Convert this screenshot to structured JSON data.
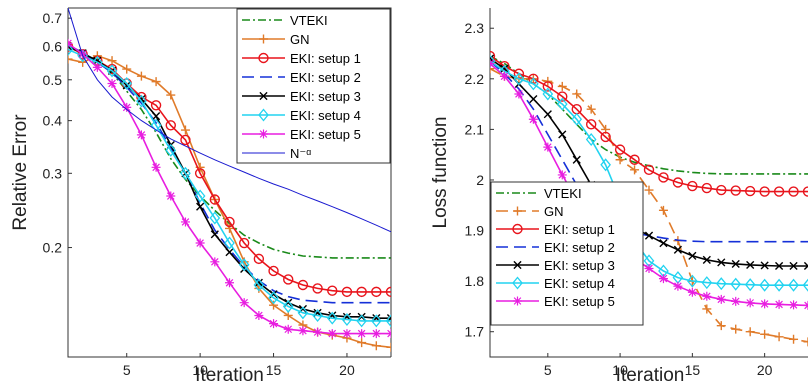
{
  "chart_data": [
    {
      "type": "line",
      "xlabel": "Iteration",
      "ylabel": "Relative Error",
      "xlim": [
        1,
        23
      ],
      "ylim": [
        0.11,
        0.74
      ],
      "yscale": "log",
      "xticks": [
        5,
        10,
        15,
        20
      ],
      "yticks": [
        0.2,
        0.3,
        0.4,
        0.5,
        0.6,
        0.7
      ],
      "legend_position": "top-right",
      "grid": false,
      "x": [
        1,
        2,
        3,
        4,
        5,
        6,
        7,
        8,
        9,
        10,
        11,
        12,
        13,
        14,
        15,
        16,
        17,
        18,
        19,
        20,
        21,
        22,
        23
      ],
      "series": [
        {
          "name": "VTEKI",
          "color": "#1a8a1a",
          "dash": "8,3,2,3",
          "marker": "none",
          "values": [
            0.6,
            0.575,
            0.55,
            0.52,
            0.47,
            0.425,
            0.375,
            0.325,
            0.29,
            0.265,
            0.245,
            0.228,
            0.214,
            0.205,
            0.198,
            0.194,
            0.191,
            0.19,
            0.189,
            0.189,
            0.189,
            0.189,
            0.189
          ]
        },
        {
          "name": "GN",
          "color": "#e07b2a",
          "dash": "",
          "marker": "plus",
          "values": [
            0.56,
            0.55,
            0.57,
            0.555,
            0.53,
            0.51,
            0.495,
            0.46,
            0.38,
            0.31,
            0.26,
            0.222,
            0.185,
            0.16,
            0.146,
            0.138,
            0.131,
            0.126,
            0.124,
            0.122,
            0.119,
            0.117,
            0.116
          ]
        },
        {
          "name": "EKI: setup 1",
          "color": "#e8141c",
          "dash": "",
          "marker": "circle",
          "values": [
            0.6,
            0.575,
            0.555,
            0.53,
            0.49,
            0.455,
            0.435,
            0.39,
            0.36,
            0.3,
            0.26,
            0.23,
            0.205,
            0.188,
            0.176,
            0.168,
            0.163,
            0.16,
            0.158,
            0.157,
            0.157,
            0.157,
            0.157
          ]
        },
        {
          "name": "EKI: setup 2",
          "color": "#1530d8",
          "dash": "12,6",
          "marker": "none",
          "values": [
            0.605,
            0.58,
            0.55,
            0.52,
            0.48,
            0.44,
            0.395,
            0.345,
            0.3,
            0.255,
            0.22,
            0.198,
            0.18,
            0.167,
            0.158,
            0.153,
            0.15,
            0.149,
            0.148,
            0.148,
            0.148,
            0.148,
            0.148
          ]
        },
        {
          "name": "EKI: setup 3",
          "color": "#000000",
          "dash": "",
          "marker": "x",
          "values": [
            0.6,
            0.578,
            0.555,
            0.525,
            0.485,
            0.45,
            0.41,
            0.35,
            0.3,
            0.25,
            0.215,
            0.195,
            0.178,
            0.165,
            0.155,
            0.148,
            0.143,
            0.14,
            0.138,
            0.137,
            0.137,
            0.136,
            0.136
          ]
        },
        {
          "name": "EKI: setup 4",
          "color": "#22d3f0",
          "dash": "",
          "marker": "diamond",
          "values": [
            0.59,
            0.57,
            0.55,
            0.525,
            0.49,
            0.445,
            0.39,
            0.34,
            0.3,
            0.265,
            0.235,
            0.205,
            0.182,
            0.163,
            0.152,
            0.145,
            0.14,
            0.138,
            0.136,
            0.135,
            0.134,
            0.134,
            0.134
          ]
        },
        {
          "name": "EKI: setup 5",
          "color": "#e81ee0",
          "dash": "",
          "marker": "asterisk",
          "values": [
            0.61,
            0.575,
            0.535,
            0.49,
            0.43,
            0.37,
            0.31,
            0.265,
            0.23,
            0.205,
            0.185,
            0.165,
            0.148,
            0.138,
            0.132,
            0.128,
            0.127,
            0.126,
            0.125,
            0.125,
            0.125,
            0.125,
            0.125
          ]
        },
        {
          "name": "N⁻ᵅ",
          "color": "#1a1ad0",
          "dash": "",
          "marker": "none",
          "width": 1,
          "values": [
            0.74,
            0.57,
            0.5,
            0.455,
            0.425,
            0.4,
            0.38,
            0.362,
            0.348,
            0.335,
            0.323,
            0.312,
            0.302,
            0.292,
            0.283,
            0.275,
            0.266,
            0.258,
            0.25,
            0.242,
            0.234,
            0.226,
            0.218
          ]
        }
      ]
    },
    {
      "type": "line",
      "xlabel": "Iteration",
      "ylabel": "Loss function",
      "xlim": [
        1,
        23
      ],
      "ylim": [
        1.65,
        2.34
      ],
      "yscale": "linear",
      "xticks": [
        5,
        10,
        15,
        20
      ],
      "yticks": [
        1.7,
        1.8,
        1.9,
        2.0,
        2.1,
        2.2,
        2.3
      ],
      "ytick_labels": [
        "1.7",
        "1.8",
        "1.9",
        "2",
        "2.1",
        "2.2",
        "2.3"
      ],
      "legend_position": "bottom-left",
      "grid": false,
      "x": [
        1,
        2,
        3,
        4,
        5,
        6,
        7,
        8,
        9,
        10,
        11,
        12,
        13,
        14,
        15,
        16,
        17,
        18,
        19,
        20,
        21,
        22,
        23
      ],
      "series": [
        {
          "name": "VTEKI",
          "color": "#1a8a1a",
          "dash": "8,3,2,3",
          "marker": "none",
          "values": [
            2.245,
            2.23,
            2.21,
            2.19,
            2.17,
            2.14,
            2.11,
            2.08,
            2.06,
            2.045,
            2.035,
            2.028,
            2.022,
            2.018,
            2.015,
            2.013,
            2.012,
            2.012,
            2.012,
            2.012,
            2.012,
            2.012,
            2.012
          ]
        },
        {
          "name": "GN",
          "color": "#e07b2a",
          "dash": "12,6",
          "marker": "plus",
          "values": [
            2.22,
            2.205,
            2.2,
            2.2,
            2.195,
            2.185,
            2.17,
            2.14,
            2.1,
            2.04,
            2.02,
            1.98,
            1.94,
            1.88,
            1.8,
            1.745,
            1.712,
            1.705,
            1.7,
            1.695,
            1.69,
            1.685,
            1.68
          ]
        },
        {
          "name": "EKI: setup 1",
          "color": "#e8141c",
          "dash": "",
          "marker": "circle",
          "values": [
            2.245,
            2.225,
            2.21,
            2.2,
            2.185,
            2.165,
            2.14,
            2.11,
            2.085,
            2.06,
            2.04,
            2.02,
            2.005,
            1.995,
            1.988,
            1.984,
            1.98,
            1.979,
            1.978,
            1.977,
            1.977,
            1.977,
            1.977
          ]
        },
        {
          "name": "EKI: setup 2",
          "color": "#1530d8",
          "dash": "12,6",
          "marker": "none",
          "values": [
            2.235,
            2.21,
            2.18,
            2.14,
            2.09,
            2.04,
            1.99,
            1.95,
            1.93,
            1.905,
            1.895,
            1.89,
            1.885,
            1.881,
            1.879,
            1.878,
            1.878,
            1.878,
            1.878,
            1.878,
            1.878,
            1.878,
            1.878
          ]
        },
        {
          "name": "EKI: setup 3",
          "color": "#000000",
          "dash": "",
          "marker": "x",
          "values": [
            2.24,
            2.22,
            2.19,
            2.16,
            2.13,
            2.09,
            2.04,
            1.99,
            1.95,
            1.92,
            1.905,
            1.89,
            1.875,
            1.862,
            1.85,
            1.842,
            1.837,
            1.834,
            1.832,
            1.831,
            1.83,
            1.83,
            1.83
          ]
        },
        {
          "name": "EKI: setup 4",
          "color": "#22d3f0",
          "dash": "",
          "marker": "diamond",
          "values": [
            2.235,
            2.215,
            2.2,
            2.19,
            2.17,
            2.15,
            2.12,
            2.08,
            2.03,
            1.96,
            1.88,
            1.84,
            1.82,
            1.807,
            1.8,
            1.797,
            1.795,
            1.794,
            1.793,
            1.792,
            1.792,
            1.792,
            1.792
          ]
        },
        {
          "name": "EKI: setup 5",
          "color": "#e81ee0",
          "dash": "",
          "marker": "asterisk",
          "values": [
            2.23,
            2.205,
            2.17,
            2.12,
            2.065,
            2.01,
            1.96,
            1.92,
            1.89,
            1.865,
            1.845,
            1.825,
            1.805,
            1.79,
            1.778,
            1.77,
            1.764,
            1.76,
            1.757,
            1.755,
            1.754,
            1.753,
            1.752
          ]
        }
      ]
    }
  ]
}
